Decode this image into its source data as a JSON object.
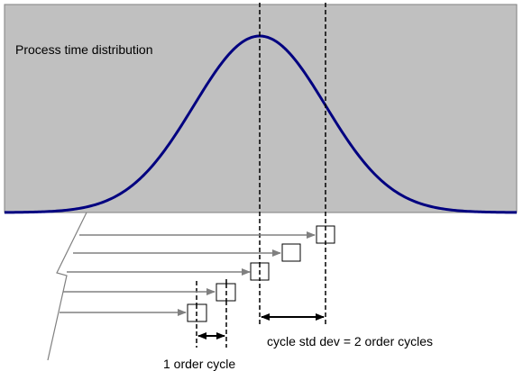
{
  "title": "Process time distribution",
  "cycle_label": "1 order cycle",
  "std_label": "cycle std dev = 2 order cycles",
  "colors": {
    "panel": "#c0c0c0",
    "curve": "#000080",
    "arrow": "#808080",
    "ink": "#000000"
  },
  "chart_data": {
    "type": "distribution",
    "distribution": "normal",
    "title": "Process time distribution",
    "mean_marker": "dashed line at mean",
    "std_marker": "dashed line at mean + 1 std dev",
    "std_dev_in_order_cycles": 2,
    "orders": 5
  }
}
